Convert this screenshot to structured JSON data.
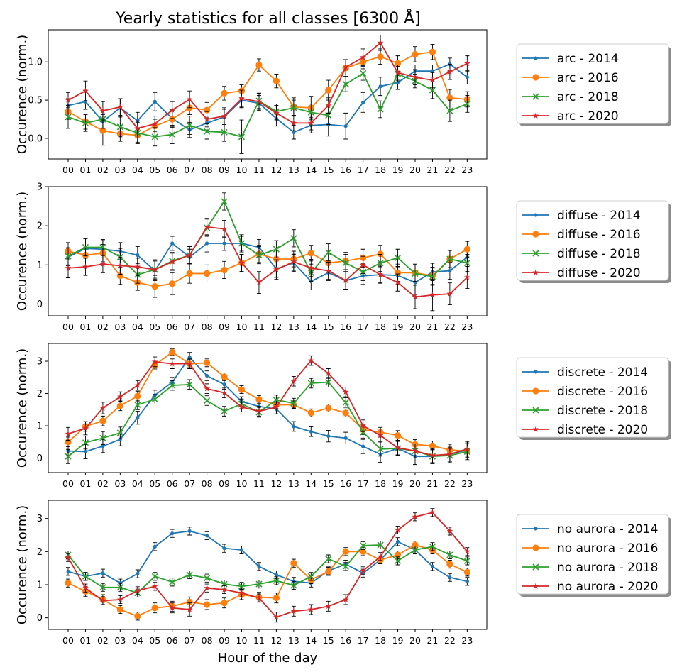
{
  "figure": {
    "title": "Yearly statistics for all classes [6300 Å]",
    "xlabel": "Hour of the day"
  },
  "chart_data": [
    {
      "type": "line",
      "class": "arc",
      "ylabel": "Occurence (norm.)",
      "ylim": [
        -0.27,
        1.42
      ],
      "yticks": [
        0.0,
        0.5,
        1.0
      ],
      "ytick_labels": [
        "0.0",
        "0.5",
        "1.0"
      ],
      "x": [
        "00",
        "01",
        "02",
        "03",
        "04",
        "05",
        "06",
        "07",
        "08",
        "09",
        "10",
        "11",
        "12",
        "13",
        "14",
        "15",
        "16",
        "17",
        "18",
        "19",
        "20",
        "21",
        "22",
        "23"
      ],
      "series": [
        {
          "name": "arc - 2014",
          "color": "#1f77b4",
          "marker": "dot",
          "values": [
            0.43,
            0.48,
            0.22,
            0.4,
            0.23,
            0.48,
            0.26,
            0.11,
            0.2,
            0.28,
            0.5,
            0.46,
            0.26,
            0.08,
            0.17,
            0.18,
            0.16,
            0.47,
            0.68,
            0.73,
            0.88,
            0.88,
            0.97,
            0.8
          ],
          "errors": [
            0.09,
            0.1,
            0.09,
            0.12,
            0.11,
            0.12,
            0.11,
            0.1,
            0.09,
            0.1,
            0.1,
            0.1,
            0.1,
            0.09,
            0.1,
            0.15,
            0.17,
            0.13,
            0.12,
            0.09,
            0.08,
            0.08,
            0.08,
            0.09
          ]
        },
        {
          "name": "arc - 2016",
          "color": "#ff7f0e",
          "marker": "circle",
          "values": [
            0.35,
            0.22,
            0.1,
            0.06,
            0.04,
            0.16,
            0.25,
            0.4,
            0.37,
            0.59,
            0.62,
            0.96,
            0.75,
            0.41,
            0.4,
            0.63,
            0.92,
            1.0,
            1.07,
            0.98,
            1.1,
            1.13,
            0.53,
            0.51
          ],
          "errors": [
            0.1,
            0.1,
            0.19,
            0.1,
            0.09,
            0.09,
            0.11,
            0.09,
            0.1,
            0.09,
            0.08,
            0.08,
            0.09,
            0.12,
            0.15,
            0.13,
            0.11,
            0.09,
            0.1,
            0.1,
            0.1,
            0.1,
            0.11,
            0.1
          ]
        },
        {
          "name": "arc - 2018",
          "color": "#2ca02c",
          "marker": "x",
          "values": [
            0.28,
            0.2,
            0.25,
            0.15,
            0.07,
            0.02,
            0.05,
            0.17,
            0.09,
            0.08,
            0.02,
            0.49,
            0.35,
            0.4,
            0.34,
            0.3,
            0.71,
            0.85,
            0.38,
            0.84,
            0.75,
            0.63,
            0.36,
            0.45
          ],
          "errors": [
            0.15,
            0.11,
            0.12,
            0.13,
            0.14,
            0.12,
            0.12,
            0.12,
            0.1,
            0.12,
            0.22,
            0.1,
            0.1,
            0.1,
            0.11,
            0.12,
            0.1,
            0.09,
            0.11,
            0.1,
            0.09,
            0.11,
            0.14,
            0.11
          ]
        },
        {
          "name": "arc - 2020",
          "color": "#d62728",
          "marker": "star",
          "values": [
            0.5,
            0.62,
            0.36,
            0.41,
            0.13,
            0.19,
            0.37,
            0.51,
            0.25,
            0.29,
            0.52,
            0.48,
            0.33,
            0.2,
            0.2,
            0.43,
            0.93,
            1.06,
            1.25,
            0.86,
            0.8,
            0.76,
            0.87,
            0.98
          ],
          "errors": [
            0.1,
            0.13,
            0.12,
            0.11,
            0.1,
            0.1,
            0.11,
            0.11,
            0.1,
            0.11,
            0.11,
            0.11,
            0.1,
            0.1,
            0.09,
            0.1,
            0.1,
            0.11,
            0.1,
            0.1,
            0.1,
            0.1,
            0.1,
            0.1
          ]
        }
      ]
    },
    {
      "type": "line",
      "class": "diffuse",
      "ylabel": "Occurence (norm.)",
      "ylim": [
        -0.3,
        3.0
      ],
      "yticks": [
        0,
        1,
        2,
        3
      ],
      "ytick_labels": [
        "0",
        "1",
        "2",
        "3"
      ],
      "x": [
        "00",
        "01",
        "02",
        "03",
        "04",
        "05",
        "06",
        "07",
        "08",
        "09",
        "10",
        "11",
        "12",
        "13",
        "14",
        "15",
        "16",
        "17",
        "18",
        "19",
        "20",
        "21",
        "22",
        "23"
      ],
      "series": [
        {
          "name": "diffuse - 2014",
          "color": "#1f77b4",
          "marker": "dot",
          "values": [
            1.2,
            1.42,
            1.4,
            1.35,
            1.25,
            0.85,
            1.55,
            1.2,
            1.55,
            1.55,
            1.55,
            1.45,
            0.9,
            1.05,
            0.58,
            0.8,
            0.6,
            0.72,
            0.75,
            0.73,
            0.55,
            0.82,
            0.85,
            1.2
          ],
          "errors": [
            0.22,
            0.25,
            0.22,
            0.22,
            0.22,
            0.25,
            0.18,
            0.2,
            0.22,
            0.18,
            0.18,
            0.2,
            0.22,
            0.22,
            0.22,
            0.2,
            0.22,
            0.22,
            0.2,
            0.22,
            0.32,
            0.22,
            0.22,
            0.2
          ]
        },
        {
          "name": "diffuse - 2016",
          "color": "#ff7f0e",
          "marker": "circle",
          "values": [
            1.35,
            1.25,
            1.3,
            0.72,
            0.55,
            0.45,
            0.52,
            0.78,
            0.78,
            0.87,
            1.05,
            1.28,
            1.15,
            1.15,
            1.3,
            1.05,
            1.1,
            1.18,
            1.28,
            0.8,
            0.8,
            0.72,
            1.15,
            1.4
          ],
          "errors": [
            0.22,
            0.2,
            0.22,
            0.22,
            0.2,
            0.28,
            0.28,
            0.25,
            0.22,
            0.22,
            0.22,
            0.22,
            0.22,
            0.2,
            0.2,
            0.2,
            0.22,
            0.22,
            0.22,
            0.22,
            0.22,
            0.22,
            0.22,
            0.2
          ]
        },
        {
          "name": "diffuse - 2018",
          "color": "#2ca02c",
          "marker": "x",
          "values": [
            1.22,
            1.45,
            1.45,
            1.2,
            0.75,
            0.88,
            1.1,
            1.25,
            1.95,
            2.62,
            1.55,
            1.25,
            1.4,
            1.68,
            0.8,
            1.32,
            1.05,
            0.82,
            1.05,
            1.18,
            0.78,
            0.7,
            1.15,
            1.05
          ],
          "errors": [
            0.22,
            0.22,
            0.2,
            0.22,
            0.22,
            0.25,
            0.22,
            0.22,
            0.22,
            0.22,
            0.22,
            0.22,
            0.22,
            0.22,
            0.22,
            0.22,
            0.22,
            0.22,
            0.22,
            0.22,
            0.22,
            0.22,
            0.22,
            0.22
          ]
        },
        {
          "name": "diffuse - 2020",
          "color": "#d62728",
          "marker": "star",
          "values": [
            0.92,
            0.95,
            1.02,
            0.98,
            0.95,
            0.88,
            1.08,
            1.25,
            1.97,
            1.92,
            1.05,
            0.55,
            0.88,
            1.08,
            0.92,
            0.85,
            0.6,
            1.0,
            0.75,
            0.55,
            0.18,
            0.23,
            0.26,
            0.68
          ],
          "errors": [
            0.25,
            0.22,
            0.22,
            0.22,
            0.22,
            0.22,
            0.22,
            0.22,
            0.22,
            0.22,
            0.22,
            0.28,
            0.25,
            0.22,
            0.22,
            0.22,
            0.22,
            0.22,
            0.22,
            0.22,
            0.3,
            0.4,
            0.28,
            0.28
          ]
        }
      ]
    },
    {
      "type": "line",
      "class": "discrete",
      "ylabel": "Occurence (norm.)",
      "ylim": [
        -0.45,
        3.55
      ],
      "yticks": [
        0,
        1,
        2,
        3
      ],
      "ytick_labels": [
        "0",
        "1",
        "2",
        "3"
      ],
      "x": [
        "00",
        "01",
        "02",
        "03",
        "04",
        "05",
        "06",
        "07",
        "08",
        "09",
        "10",
        "11",
        "12",
        "13",
        "14",
        "15",
        "16",
        "17",
        "18",
        "19",
        "20",
        "21",
        "22",
        "23"
      ],
      "series": [
        {
          "name": "discrete - 2014",
          "color": "#1f77b4",
          "marker": "dot",
          "values": [
            0.22,
            0.2,
            0.37,
            0.58,
            1.25,
            1.95,
            2.35,
            3.12,
            2.55,
            2.28,
            1.75,
            1.6,
            1.52,
            0.98,
            0.82,
            0.68,
            0.62,
            0.36,
            0.12,
            0.3,
            0.05,
            0.05,
            0.12,
            0.25
          ],
          "errors": [
            0.22,
            0.22,
            0.2,
            0.2,
            0.2,
            0.15,
            0.15,
            0.15,
            0.15,
            0.15,
            0.15,
            0.15,
            0.15,
            0.15,
            0.15,
            0.18,
            0.18,
            0.22,
            0.25,
            0.22,
            0.25,
            0.22,
            0.22,
            0.25
          ]
        },
        {
          "name": "discrete - 2016",
          "color": "#ff7f0e",
          "marker": "circle",
          "values": [
            0.5,
            0.98,
            1.15,
            1.62,
            1.92,
            2.88,
            3.28,
            2.92,
            2.95,
            2.52,
            2.12,
            1.82,
            1.65,
            1.65,
            1.4,
            1.55,
            1.4,
            0.88,
            0.8,
            0.7,
            0.42,
            0.38,
            0.25,
            0.22
          ],
          "errors": [
            0.15,
            0.15,
            0.15,
            0.15,
            0.15,
            0.12,
            0.1,
            0.12,
            0.12,
            0.12,
            0.12,
            0.12,
            0.12,
            0.12,
            0.12,
            0.12,
            0.12,
            0.15,
            0.15,
            0.15,
            0.15,
            0.15,
            0.18,
            0.22
          ]
        },
        {
          "name": "discrete - 2018",
          "color": "#2ca02c",
          "marker": "x",
          "values": [
            0.05,
            0.48,
            0.62,
            0.78,
            1.65,
            1.82,
            2.25,
            2.28,
            1.78,
            1.45,
            1.68,
            1.42,
            1.8,
            1.7,
            2.32,
            2.35,
            1.72,
            0.8,
            0.28,
            0.3,
            0.22,
            0.05,
            0.08,
            0.2
          ],
          "errors": [
            0.22,
            0.2,
            0.2,
            0.18,
            0.15,
            0.15,
            0.15,
            0.15,
            0.15,
            0.15,
            0.15,
            0.15,
            0.15,
            0.15,
            0.15,
            0.15,
            0.15,
            0.18,
            0.22,
            0.22,
            0.22,
            0.22,
            0.22,
            0.25
          ]
        },
        {
          "name": "discrete - 2020",
          "color": "#d62728",
          "marker": "star",
          "values": [
            0.75,
            0.92,
            1.55,
            1.9,
            2.25,
            2.98,
            2.92,
            2.92,
            2.15,
            2.02,
            1.58,
            1.45,
            1.58,
            2.38,
            3.02,
            2.62,
            2.05,
            1.0,
            0.7,
            0.32,
            0.22,
            0.08,
            0.12,
            0.28
          ],
          "errors": [
            0.2,
            0.2,
            0.18,
            0.15,
            0.15,
            0.15,
            0.15,
            0.15,
            0.15,
            0.15,
            0.15,
            0.15,
            0.15,
            0.15,
            0.15,
            0.15,
            0.15,
            0.18,
            0.2,
            0.22,
            0.22,
            0.22,
            0.22,
            0.25
          ]
        }
      ]
    },
    {
      "type": "line",
      "class": "no aurora",
      "ylabel": "Occurence (norm.)",
      "ylim": [
        -0.35,
        3.55
      ],
      "yticks": [
        0,
        1,
        2,
        3
      ],
      "ytick_labels": [
        "0",
        "1",
        "2",
        "3"
      ],
      "x": [
        "00",
        "01",
        "02",
        "03",
        "04",
        "05",
        "06",
        "07",
        "08",
        "09",
        "10",
        "11",
        "12",
        "13",
        "14",
        "15",
        "16",
        "17",
        "18",
        "19",
        "20",
        "21",
        "22",
        "23"
      ],
      "series": [
        {
          "name": "no aurora - 2014",
          "color": "#1f77b4",
          "marker": "dot",
          "values": [
            1.4,
            1.25,
            1.35,
            1.05,
            1.33,
            2.15,
            2.55,
            2.62,
            2.48,
            2.1,
            2.05,
            1.55,
            1.3,
            1.1,
            1.05,
            1.42,
            1.62,
            1.35,
            1.75,
            2.3,
            2.05,
            1.55,
            1.22,
            1.1
          ],
          "errors": [
            0.12,
            0.12,
            0.12,
            0.12,
            0.12,
            0.12,
            0.12,
            0.12,
            0.12,
            0.12,
            0.12,
            0.12,
            0.12,
            0.12,
            0.12,
            0.12,
            0.12,
            0.12,
            0.12,
            0.12,
            0.12,
            0.12,
            0.12,
            0.12
          ]
        },
        {
          "name": "no aurora - 2016",
          "color": "#ff7f0e",
          "marker": "circle",
          "values": [
            1.05,
            0.8,
            0.55,
            0.25,
            0.05,
            0.3,
            0.35,
            0.48,
            0.4,
            0.45,
            0.7,
            0.62,
            0.6,
            1.65,
            1.15,
            1.4,
            2.0,
            2.0,
            1.75,
            1.9,
            2.2,
            2.05,
            1.62,
            1.38
          ],
          "errors": [
            0.12,
            0.15,
            0.15,
            0.12,
            0.12,
            0.15,
            0.15,
            0.15,
            0.15,
            0.15,
            0.15,
            0.15,
            0.15,
            0.12,
            0.12,
            0.12,
            0.12,
            0.12,
            0.12,
            0.12,
            0.12,
            0.12,
            0.12,
            0.12
          ]
        },
        {
          "name": "no aurora - 2018",
          "color": "#2ca02c",
          "marker": "x",
          "values": [
            1.9,
            1.25,
            0.92,
            0.92,
            0.75,
            1.25,
            1.08,
            1.3,
            1.2,
            1.02,
            0.95,
            1.02,
            1.12,
            0.98,
            1.25,
            1.78,
            1.55,
            2.18,
            2.2,
            1.72,
            2.05,
            2.15,
            1.9,
            1.72
          ],
          "errors": [
            0.12,
            0.12,
            0.12,
            0.12,
            0.12,
            0.12,
            0.12,
            0.12,
            0.12,
            0.12,
            0.12,
            0.12,
            0.12,
            0.12,
            0.12,
            0.12,
            0.12,
            0.12,
            0.12,
            0.12,
            0.12,
            0.12,
            0.12,
            0.12
          ]
        },
        {
          "name": "no aurora - 2020",
          "color": "#d62728",
          "marker": "star",
          "values": [
            1.82,
            0.9,
            0.52,
            0.55,
            0.82,
            0.95,
            0.3,
            0.25,
            0.9,
            0.85,
            0.75,
            0.6,
            0.02,
            0.2,
            0.25,
            0.35,
            0.55,
            1.42,
            1.85,
            2.65,
            3.05,
            3.18,
            2.62,
            2.0
          ],
          "errors": [
            0.12,
            0.12,
            0.12,
            0.12,
            0.12,
            0.12,
            0.15,
            0.2,
            0.12,
            0.12,
            0.12,
            0.12,
            0.15,
            0.15,
            0.15,
            0.15,
            0.15,
            0.12,
            0.12,
            0.12,
            0.12,
            0.12,
            0.12,
            0.12
          ]
        }
      ]
    }
  ]
}
